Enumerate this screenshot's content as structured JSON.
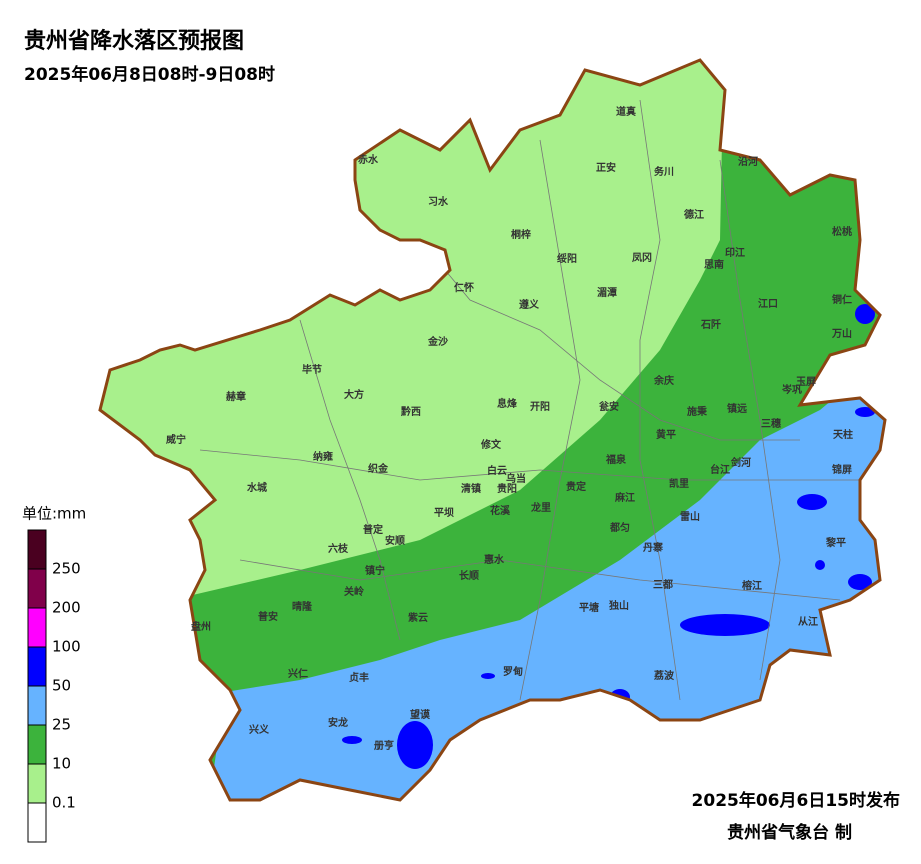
{
  "header": {
    "title": "贵州省降水落区预报图",
    "subtitle": "2025年06月8日08时-9日08时"
  },
  "legend": {
    "unit": "单位:mm",
    "colors": [
      "#4a0020",
      "#80004a",
      "#ff00ff",
      "#0000ff",
      "#66b3ff",
      "#3cb33c",
      "#a8f08c",
      "#ffffff"
    ],
    "labels": [
      250,
      200,
      100,
      50,
      25,
      10,
      0.1
    ]
  },
  "counties": [
    "赤水",
    "习水",
    "道真",
    "正安",
    "务川",
    "德江",
    "沿河",
    "松桃",
    "桐梓",
    "绥阳",
    "凤冈",
    "印江",
    "思南",
    "仁怀",
    "遵义",
    "湄潭",
    "江口",
    "铜仁",
    "万山",
    "石阡",
    "金沙",
    "毕节",
    "大方",
    "余庆",
    "玉屏",
    "岑巩",
    "赫章",
    "黔西",
    "息烽",
    "开阳",
    "瓮安",
    "施秉",
    "镇远",
    "三穗",
    "天柱",
    "威宁",
    "修文",
    "黄平",
    "纳雍",
    "织金",
    "福泉",
    "剑河",
    "台江",
    "锦屏",
    "白云",
    "乌当",
    "清镇",
    "贵阳",
    "贵定",
    "凯里",
    "水城",
    "麻江",
    "雷山",
    "花溪",
    "龙里",
    "平坝",
    "普定",
    "安顺",
    "都匀",
    "丹寨",
    "六枝",
    "黎平",
    "惠水",
    "镇宁",
    "长顺",
    "关岭",
    "三都",
    "榕江",
    "盘州",
    "普安",
    "晴隆",
    "紫云",
    "平塘",
    "独山",
    "从江",
    "兴仁",
    "贞丰",
    "罗甸",
    "荔波",
    "兴义",
    "安龙",
    "望谟",
    "册亨"
  ],
  "footer": {
    "issued": "2025年06月6日15时发布",
    "agency": "贵州省气象台 制"
  }
}
